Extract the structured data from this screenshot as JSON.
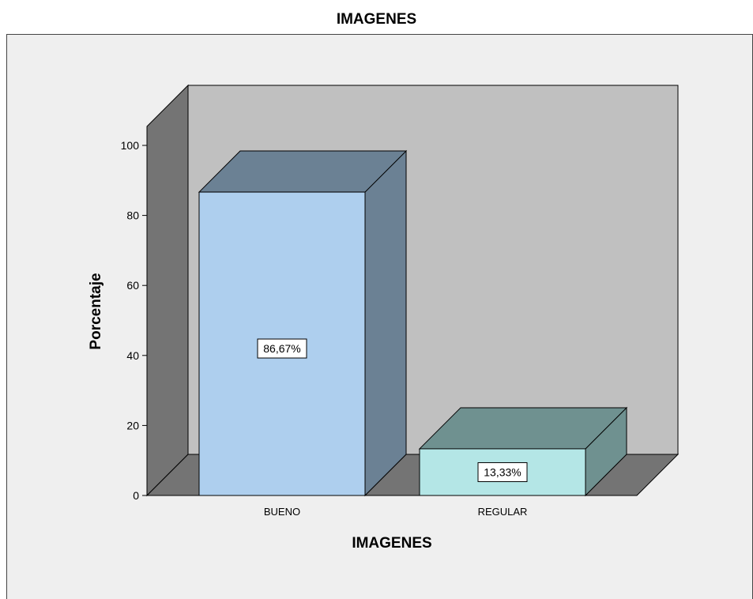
{
  "chart_data": {
    "type": "bar",
    "title": "IMAGENES",
    "xlabel": "IMAGENES",
    "ylabel": "Porcentaje",
    "categories": [
      "BUENO",
      "REGULAR"
    ],
    "values": [
      86.67,
      13.33
    ],
    "value_labels": [
      "86,67%",
      "13,33%"
    ],
    "ylim": [
      0,
      100
    ],
    "yticks": [
      "0",
      "20",
      "40",
      "60",
      "80",
      "100"
    ],
    "style": "3d",
    "grid": false,
    "colors": {
      "bars_front": [
        "#aecfee",
        "#b4e6e6"
      ],
      "bars_side": [
        "#6b8194",
        "#6f9190"
      ],
      "bars_top": [
        "#6b8194",
        "#6f9190"
      ],
      "back_wall": "#c0c0c0",
      "side_wall": "#747474",
      "floor": "#747474",
      "plot_background": "#efefef"
    }
  }
}
